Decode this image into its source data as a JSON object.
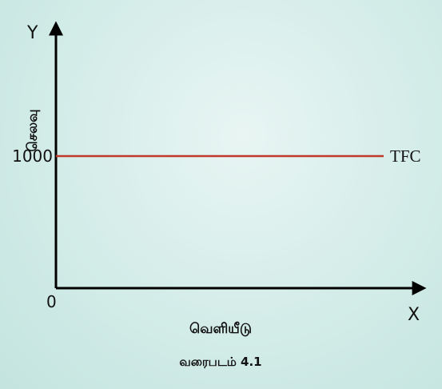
{
  "chart_data": {
    "type": "line",
    "title": "",
    "caption": "வரைபடம் 4.1",
    "xlabel": "வெளியீடு",
    "ylabel": "செலவு",
    "x_axis_letter": "X",
    "y_axis_letter": "Y",
    "origin_label": "0",
    "yticks": [
      1000
    ],
    "ylim": [
      0,
      2000
    ],
    "xlim": [
      0,
      10
    ],
    "grid": false,
    "series": [
      {
        "name": "TFC",
        "x": [
          0,
          10
        ],
        "y": [
          1000,
          1000
        ],
        "color": "#c0392b"
      }
    ]
  }
}
